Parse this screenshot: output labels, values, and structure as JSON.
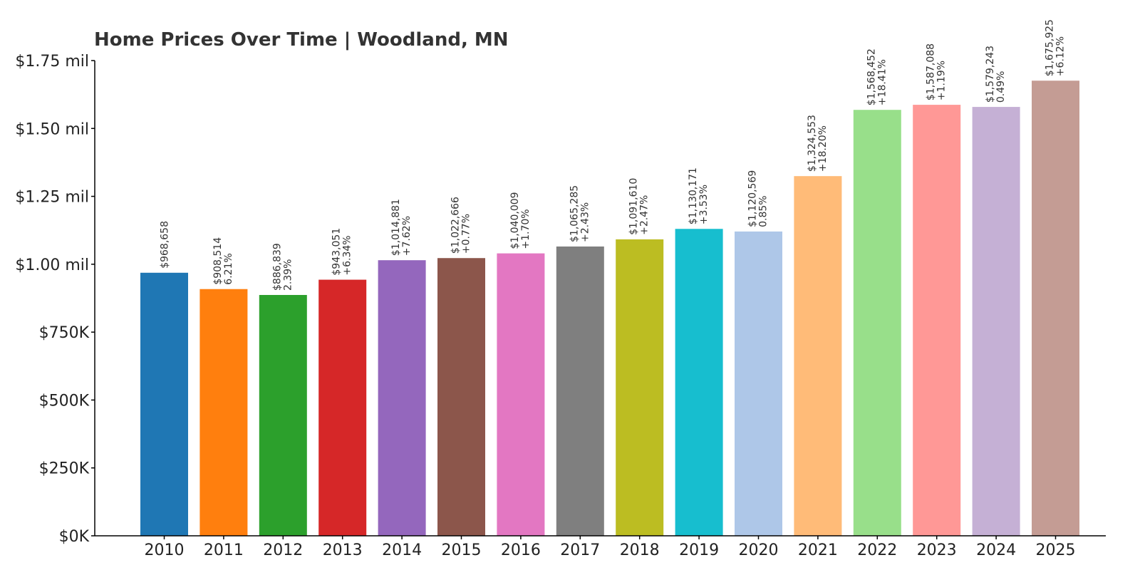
{
  "chart_data": {
    "type": "bar",
    "title": "Home Prices Over Time | Woodland, MN",
    "xlabel": "",
    "ylabel": "",
    "ylim": [
      0,
      1750000
    ],
    "grid": false,
    "categories": [
      "2010",
      "2011",
      "2012",
      "2013",
      "2014",
      "2015",
      "2016",
      "2017",
      "2018",
      "2019",
      "2020",
      "2021",
      "2022",
      "2023",
      "2024",
      "2025"
    ],
    "values": [
      968658,
      908514,
      886839,
      943051,
      1014881,
      1022666,
      1040009,
      1065285,
      1091610,
      1130171,
      1120569,
      1324553,
      1568452,
      1587088,
      1579243,
      1675925
    ],
    "value_labels": [
      "$968,658",
      "$908,514",
      "$886,839",
      "$943,051",
      "$1,014,881",
      "$1,022,666",
      "$1,040,009",
      "$1,065,285",
      "$1,091,610",
      "$1,130,171",
      "$1,120,569",
      "$1,324,553",
      "$1,568,452",
      "$1,587,088",
      "$1,579,243",
      "$1,675,925"
    ],
    "change_labels": [
      "",
      "6.21%",
      "2.39%",
      "+6.34%",
      "+7.62%",
      "+0.77%",
      "+1.70%",
      "+2.43%",
      "+2.47%",
      "+3.53%",
      "0.85%",
      "+18.20%",
      "+18.41%",
      "+1.19%",
      "0.49%",
      "+6.12%"
    ],
    "colors": [
      "#1f77b4",
      "#ff7f0e",
      "#2ca02c",
      "#d62728",
      "#9467bd",
      "#8c564b",
      "#e377c2",
      "#7f7f7f",
      "#bcbd22",
      "#17becf",
      "#aec7e8",
      "#ffbb78",
      "#98df8a",
      "#ff9896",
      "#c5b0d5",
      "#c49c94"
    ],
    "y_ticks": [
      {
        "value": 0,
        "label": "$0K"
      },
      {
        "value": 250000,
        "label": "$250K"
      },
      {
        "value": 500000,
        "label": "$500K"
      },
      {
        "value": 750000,
        "label": "$750K"
      },
      {
        "value": 1000000,
        "label": "$1.00 mil"
      },
      {
        "value": 1250000,
        "label": "$1.25 mil"
      },
      {
        "value": 1500000,
        "label": "$1.50 mil"
      },
      {
        "value": 1750000,
        "label": "$1.75 mil"
      }
    ]
  }
}
